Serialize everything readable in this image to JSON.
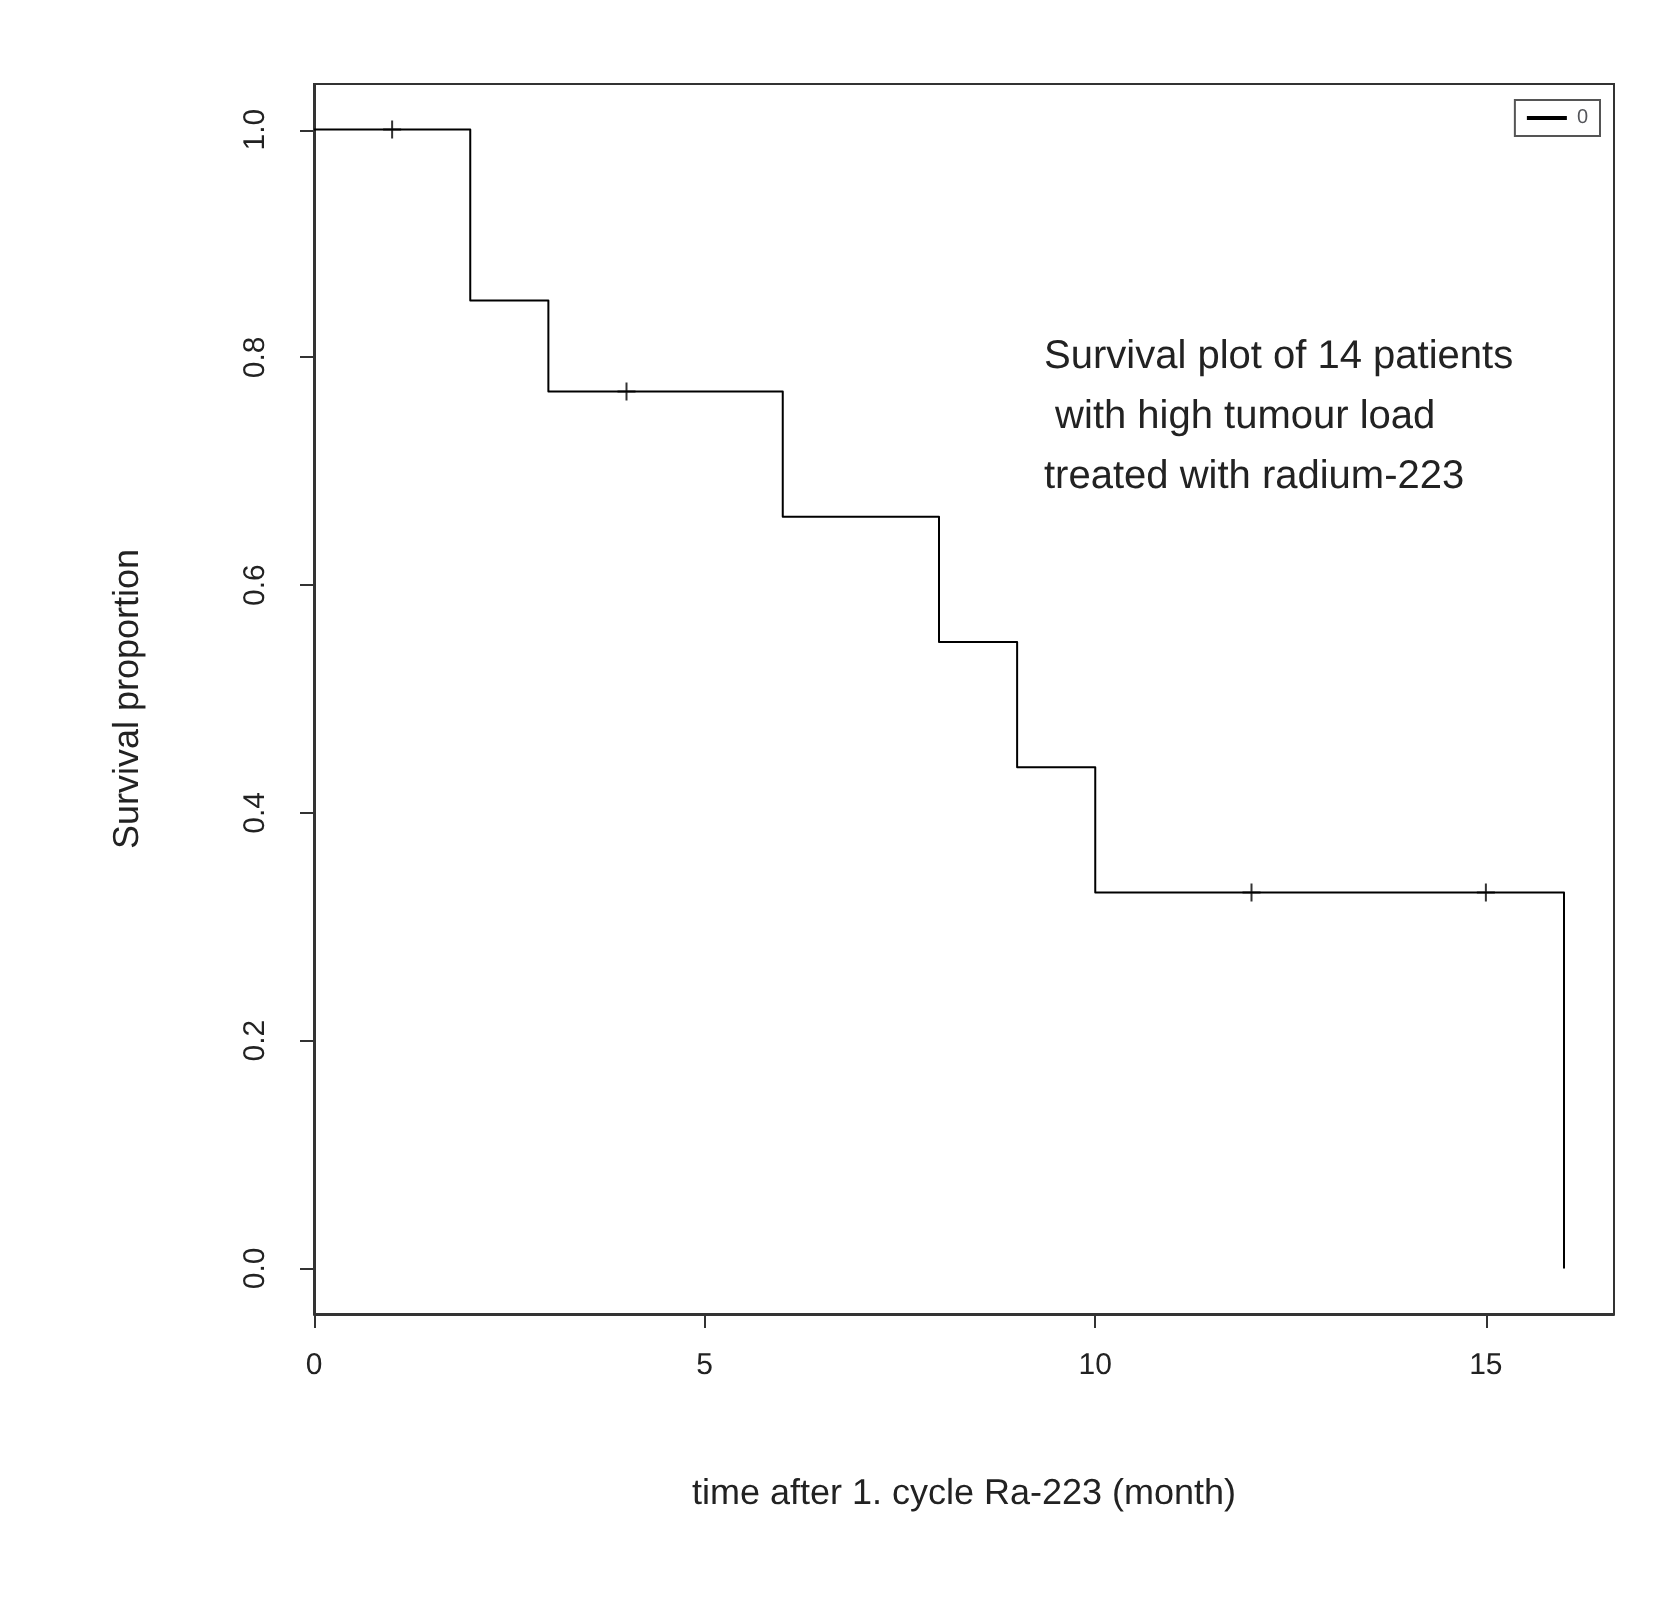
{
  "chart_data": {
    "type": "step",
    "xlabel": "time after 1. cycle Ra-223 (month)",
    "ylabel": "Survival proportion",
    "annotations": [
      "Survival plot of 14 patients with high tumour load treated with radium-223"
    ],
    "series": [
      {
        "name": "0",
        "color": "#000000",
        "x": [
          0,
          2,
          3,
          6,
          8,
          9,
          10,
          16,
          16
        ],
        "values": [
          1,
          0.85,
          0.77,
          0.66,
          0.55,
          0.44,
          0.33,
          0.33,
          0
        ]
      },
      {
        "type": "scatter",
        "marker": "cross",
        "color": "#000000",
        "x": [
          1,
          4,
          12,
          15
        ],
        "values": [
          1,
          0.77,
          0.33,
          0.33
        ]
      }
    ],
    "xlim": [
      0,
      16.64
    ],
    "ylim": [
      -0.04,
      1.04
    ],
    "xticks": [
      0,
      5,
      10,
      15
    ],
    "yticks": [
      {
        "value": 0,
        "label": "0.0"
      },
      {
        "value": 0.2,
        "label": "0.2"
      },
      {
        "value": 0.4,
        "label": "0.4"
      },
      {
        "value": 0.6,
        "label": "0.6"
      },
      {
        "value": 0.8,
        "label": "0.8"
      },
      {
        "value": 1,
        "label": "1.0"
      }
    ],
    "legend": "top right",
    "grid": false,
    "line_style": "solid"
  }
}
